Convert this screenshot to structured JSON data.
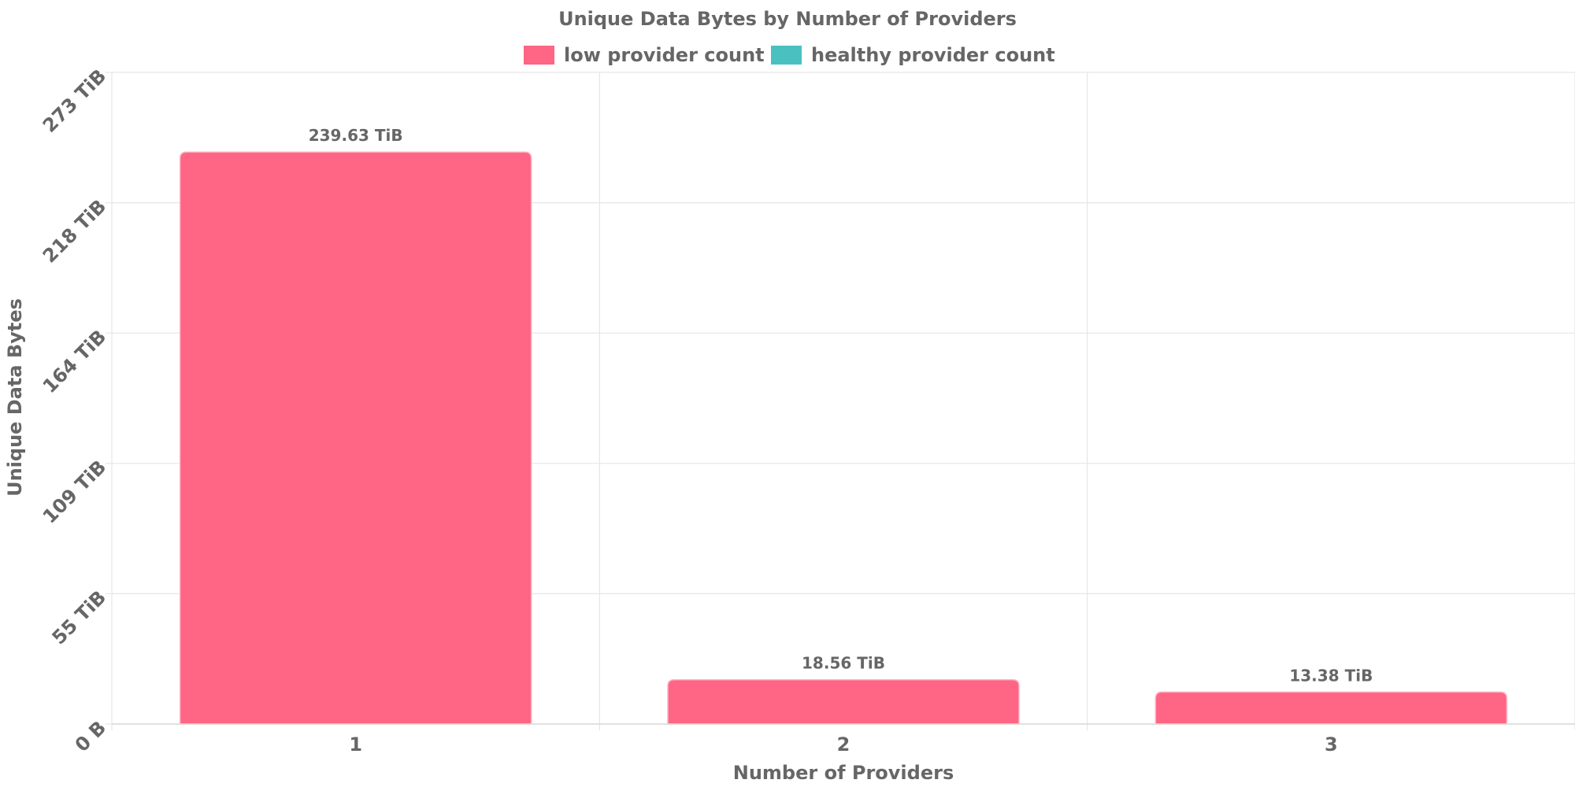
{
  "chart_data": {
    "type": "bar",
    "title": "Unique Data Bytes by Number of Providers",
    "xlabel": "Number of Providers",
    "ylabel": "Unique Data Bytes",
    "categories": [
      "1",
      "2",
      "3"
    ],
    "series": [
      {
        "name": "low provider count",
        "color": "#ff6584",
        "values": [
          239.63,
          18.56,
          13.38
        ],
        "value_labels": [
          "239.63 TiB",
          "18.56 TiB",
          "13.38 TiB"
        ]
      },
      {
        "name": "healthy provider count",
        "color": "#4bc0c0",
        "values": [
          0,
          0,
          0
        ]
      }
    ],
    "unit": "TiB",
    "ylim": [
      0,
      273
    ],
    "y_ticks": [
      {
        "value": 0,
        "label": "0 B"
      },
      {
        "value": 54.6,
        "label": "55 TiB"
      },
      {
        "value": 109.2,
        "label": "109 TiB"
      },
      {
        "value": 163.8,
        "label": "164 TiB"
      },
      {
        "value": 218.4,
        "label": "218 TiB"
      },
      {
        "value": 273,
        "label": "273 TiB"
      }
    ],
    "grid": true,
    "legend_position": "top-center"
  }
}
